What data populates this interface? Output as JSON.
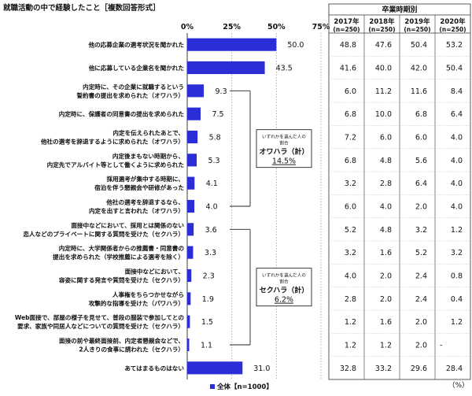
{
  "chart_data": {
    "type": "bar",
    "title": "就職活動の中で経験したこと［複数回答形式］",
    "axis_ticks": [
      "0%",
      "25%",
      "50%",
      "75%"
    ],
    "xlim": [
      0,
      75
    ],
    "categories": [
      [
        "他の応募企業の選考状況を聞かれた"
      ],
      [
        "他に応募している企業名を聞かれた"
      ],
      [
        "内定時に、その企業に就職するという",
        "誓約書の提出を求められた（オワハラ）"
      ],
      [
        "内定時に、保護者の同意書の提出を求められた"
      ],
      [
        "内定を伝えられたあとで、",
        "他社の選考を辞退するように求められた（オワハラ）"
      ],
      [
        "内定後まもない時期から、",
        "内定先でアルバイト等として働くように求められた"
      ],
      [
        "採用選考が集中する時期に、",
        "宿泊を伴う懇親会や研修があった"
      ],
      [
        "他社の選考を辞退するなら、",
        "内定を出すと言われた（オワハラ）"
      ],
      [
        "面接中などにおいて、採用とは関係のない",
        "恋人などのプライベートに関する質問を受けた（セクハラ）"
      ],
      [
        "内定時に、大学関係者からの推薦書・同意書の",
        "提出を求められた（学校推薦による選考を除く）"
      ],
      [
        "面接中などにおいて、",
        "容姿に関する発言や質問を受けた（セクハラ）"
      ],
      [
        "人事権をちらつかせながら",
        "攻撃的な指導を受けた（パワハラ）"
      ],
      [
        "Web面接で、部屋の様子を見せて、普段の服装で参加してとの",
        "要求、家族や同居人などについての質問を受けた（セクハラ）"
      ],
      [
        "面接の前や最終面接前、内定者懇親会などで、",
        "2人きりの食事に誘われた（セクハラ）"
      ],
      [
        "あてはまるものはない"
      ]
    ],
    "series": [
      {
        "name": "全体【n=1000】",
        "color": "#2b2ed6",
        "values": [
          50.0,
          43.5,
          9.3,
          7.5,
          5.8,
          5.3,
          4.1,
          4.0,
          3.6,
          3.3,
          2.3,
          1.9,
          1.5,
          1.1,
          31.0
        ],
        "labels": [
          "50.0",
          "43.5",
          "9.3",
          "7.5",
          "5.8",
          "5.3",
          "4.1",
          "4.0",
          "3.6",
          "3.3",
          "2.3",
          "1.9",
          "1.5",
          "1.1",
          "31.0"
        ]
      }
    ],
    "annotations": [
      {
        "caption": "いずれかを選んだ人の",
        "caption2": "割合",
        "label": "オワハラ（計）",
        "value": "14.5%",
        "rows": [
          2,
          7
        ]
      },
      {
        "caption": "いずれかを選んだ人の",
        "caption2": "割合",
        "label": "セクハラ（計）",
        "value": "6.2%",
        "rows": [
          8,
          13
        ]
      }
    ],
    "table": {
      "title": "卒業時期別",
      "columns": [
        {
          "year": "2017年",
          "n": "(n=250)"
        },
        {
          "year": "2018年",
          "n": "(n=250)"
        },
        {
          "year": "2019年",
          "n": "(n=250)"
        },
        {
          "year": "2020年",
          "n": "(n=250)"
        }
      ],
      "rows": [
        [
          "48.8",
          "47.6",
          "50.4",
          "53.2"
        ],
        [
          "41.6",
          "40.0",
          "42.0",
          "50.4"
        ],
        [
          "6.0",
          "11.2",
          "11.6",
          "8.4"
        ],
        [
          "6.8",
          "10.0",
          "6.8",
          "6.4"
        ],
        [
          "7.2",
          "6.0",
          "6.0",
          "4.0"
        ],
        [
          "6.8",
          "4.8",
          "5.6",
          "4.0"
        ],
        [
          "3.2",
          "2.8",
          "6.4",
          "4.0"
        ],
        [
          "6.0",
          "4.0",
          "2.0",
          "4.0"
        ],
        [
          "5.2",
          "4.8",
          "3.2",
          "1.2"
        ],
        [
          "3.2",
          "1.6",
          "5.2",
          "3.2"
        ],
        [
          "4.0",
          "2.0",
          "2.4",
          "0.8"
        ],
        [
          "2.8",
          "2.0",
          "2.4",
          "0.4"
        ],
        [
          "1.2",
          "1.6",
          "2.0",
          "1.2"
        ],
        [
          "1.2",
          "1.2",
          "2.0",
          "-"
        ],
        [
          "32.8",
          "33.2",
          "29.6",
          "28.4"
        ]
      ]
    },
    "unit": "（%）"
  }
}
